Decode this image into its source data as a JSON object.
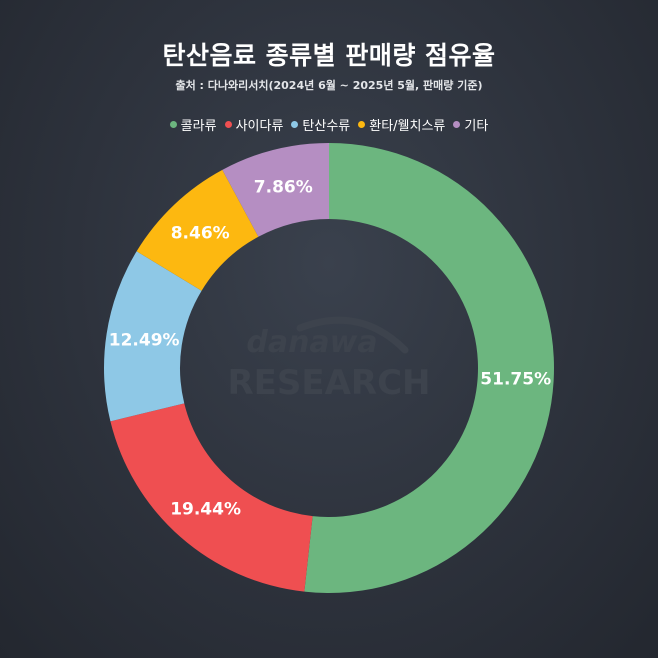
{
  "chart_data": {
    "type": "pie",
    "title": "탄산음료 종류별 판매량 점유율",
    "subtitle": "출처 : 다나와리서치(2024년 6월 ~ 2025년 5월, 판매량 기준)",
    "legend_position": "top",
    "categories": [
      "콜라류",
      "사이다류",
      "탄산수류",
      "환타/웰치스류",
      "기타"
    ],
    "values": [
      51.75,
      19.44,
      12.49,
      8.46,
      7.86
    ],
    "labels": [
      "51.75%",
      "19.44%",
      "12.49%",
      "8.46%",
      "7.86%"
    ],
    "colors": [
      "#6cb67f",
      "#ef4f51",
      "#8ec8e6",
      "#fdb810",
      "#b58ec2"
    ],
    "donut": true
  },
  "watermark": {
    "top": "danawa",
    "bottom": "RESEARCH"
  }
}
